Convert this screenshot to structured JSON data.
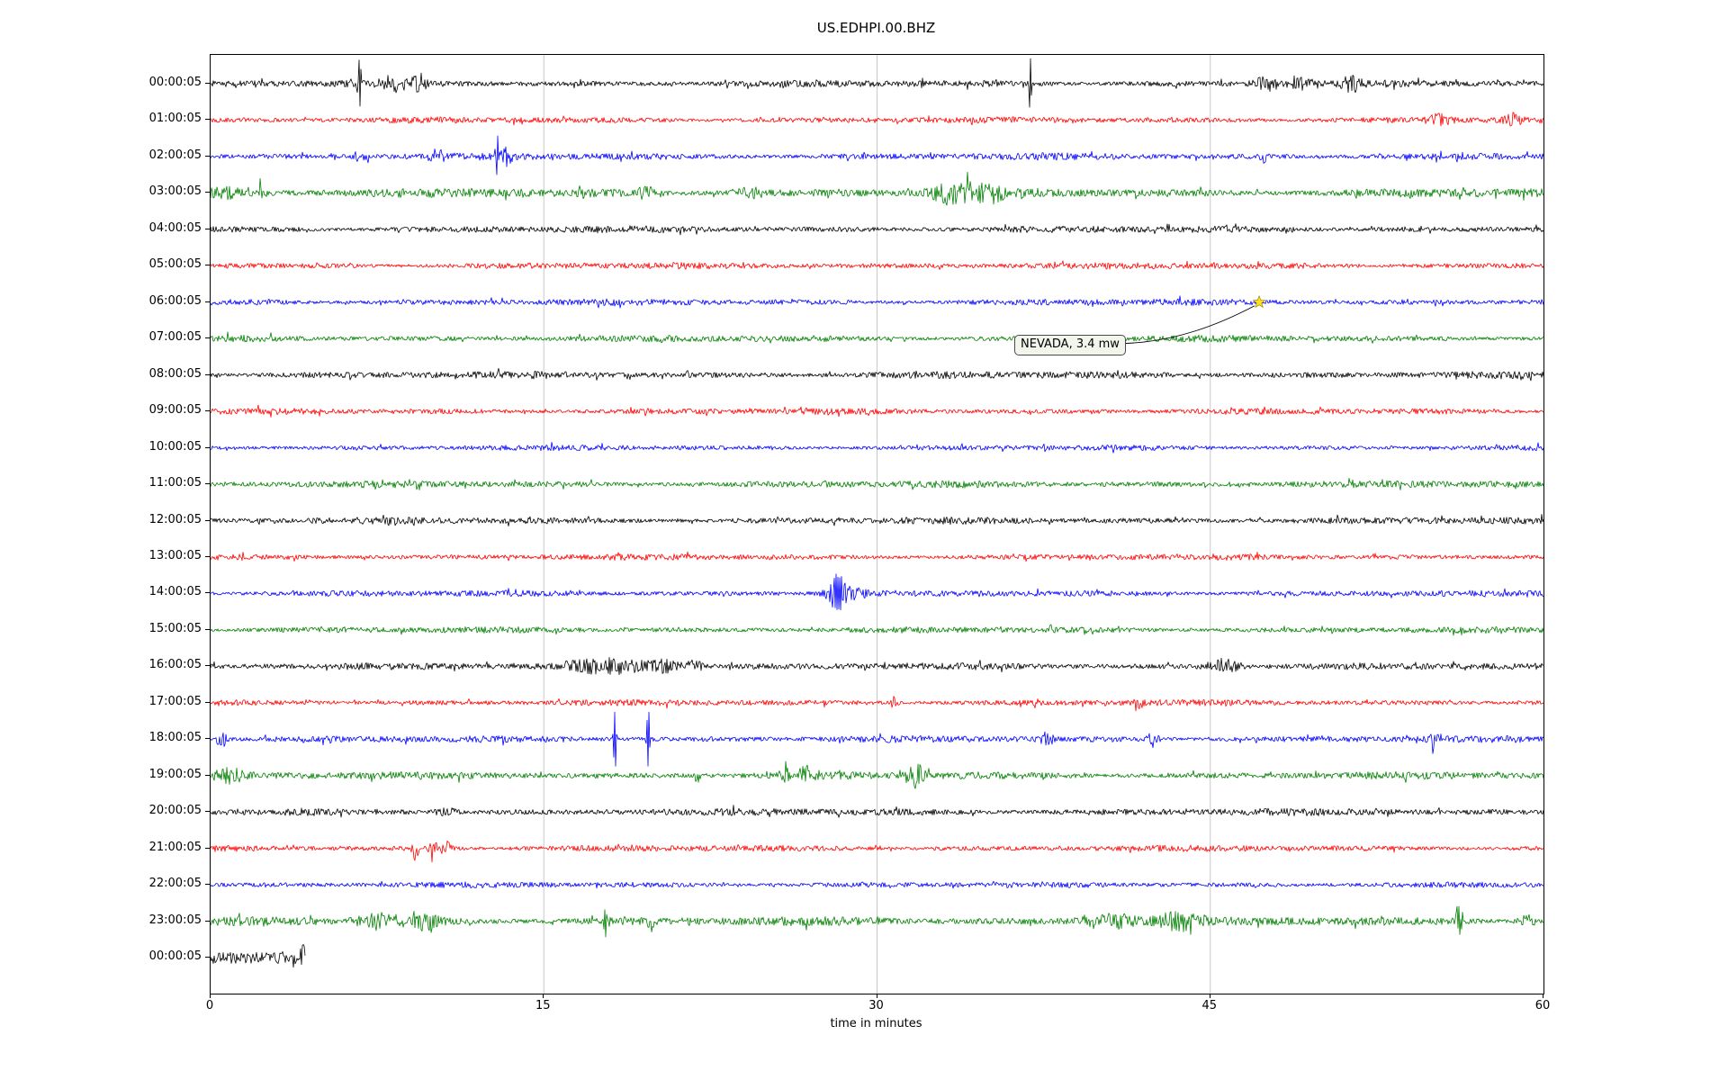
{
  "title": "US.EDHPI.00.BHZ",
  "axis": {
    "xlabel": "time in minutes",
    "xticks": [
      0,
      15,
      30,
      45,
      60
    ],
    "gridlines_x": [
      15,
      30,
      45
    ],
    "x_min": 0,
    "x_max": 60
  },
  "annotation": {
    "label": "NEVADA, 3.4 mw",
    "event_minute": 47.2,
    "event_row": 6,
    "star_color": "#ffe120",
    "star_edge_color": "#8f7a00"
  },
  "chart_data": {
    "type": "line",
    "kind": "seismic-helicorder-dayplot",
    "title": "US.EDHPI.00.BHZ",
    "xlabel": "time in minutes",
    "x_range_minutes": [
      0,
      60
    ],
    "minutes_per_row": 60,
    "grid": "vertical-only",
    "trace_color_cycle": [
      "#000000",
      "#ff0000",
      "#0000ff",
      "#008000"
    ],
    "row_note": "events are [minute, relative_amplitude, width_minutes] bursts/spikes read from the plot",
    "rows": [
      {
        "label": "00:00:05",
        "color": "#000000",
        "base_amp": 1.0,
        "events": [
          [
            6.7,
            9,
            0.08
          ],
          [
            8.2,
            2.2,
            0.5
          ],
          [
            9.3,
            1.8,
            0.5
          ],
          [
            36.9,
            11,
            0.06
          ],
          [
            47.6,
            2.0,
            0.7
          ],
          [
            49.2,
            1.6,
            0.4
          ],
          [
            51.3,
            3.5,
            0.3
          ]
        ]
      },
      {
        "label": "01:00:05",
        "color": "#ff0000",
        "base_amp": 0.9,
        "events": [
          [
            55.3,
            1.8,
            0.5
          ],
          [
            58.6,
            2.2,
            0.35
          ]
        ]
      },
      {
        "label": "02:00:05",
        "color": "#0000ff",
        "base_amp": 1.0,
        "events": [
          [
            6.8,
            1.5,
            0.3
          ],
          [
            10.2,
            1.8,
            0.35
          ],
          [
            12.9,
            7,
            0.1
          ],
          [
            13.3,
            3,
            0.25
          ],
          [
            47.4,
            2.6,
            0.15
          ]
        ]
      },
      {
        "label": "03:00:05",
        "color": "#008000",
        "base_amp": 1.3,
        "events": [
          [
            0.6,
            1.2,
            0.8
          ],
          [
            2.2,
            4.5,
            0.1
          ],
          [
            19.6,
            1.2,
            0.6
          ],
          [
            24.2,
            1.2,
            0.7
          ],
          [
            33.6,
            2.8,
            1.1
          ],
          [
            35.2,
            1.6,
            0.5
          ]
        ]
      },
      {
        "label": "04:00:05",
        "color": "#000000",
        "base_amp": 1.0,
        "events": []
      },
      {
        "label": "05:00:05",
        "color": "#ff0000",
        "base_amp": 0.95,
        "events": []
      },
      {
        "label": "06:00:05",
        "color": "#0000ff",
        "base_amp": 0.95,
        "events": []
      },
      {
        "label": "07:00:05",
        "color": "#008000",
        "base_amp": 0.95,
        "events": []
      },
      {
        "label": "08:00:05",
        "color": "#000000",
        "base_amp": 1.05,
        "events": []
      },
      {
        "label": "09:00:05",
        "color": "#ff0000",
        "base_amp": 0.9,
        "events": []
      },
      {
        "label": "10:00:05",
        "color": "#0000ff",
        "base_amp": 0.8,
        "events": []
      },
      {
        "label": "11:00:05",
        "color": "#008000",
        "base_amp": 1.0,
        "events": []
      },
      {
        "label": "12:00:05",
        "color": "#000000",
        "base_amp": 1.0,
        "events": []
      },
      {
        "label": "13:00:05",
        "color": "#ff0000",
        "base_amp": 0.9,
        "events": []
      },
      {
        "label": "14:00:05",
        "color": "#0000ff",
        "base_amp": 0.9,
        "events": [
          [
            28.2,
            5.5,
            0.35
          ],
          [
            28.6,
            2.5,
            0.8
          ]
        ]
      },
      {
        "label": "15:00:05",
        "color": "#008000",
        "base_amp": 0.9,
        "events": []
      },
      {
        "label": "16:00:05",
        "color": "#000000",
        "base_amp": 1.0,
        "events": [
          [
            16.6,
            2.2,
            0.7
          ],
          [
            18.2,
            2.6,
            1.1
          ],
          [
            20.3,
            2.2,
            0.9
          ],
          [
            21.8,
            1.8,
            0.4
          ],
          [
            45.6,
            2.6,
            0.7
          ]
        ]
      },
      {
        "label": "17:00:05",
        "color": "#ff0000",
        "base_amp": 0.9,
        "events": [
          [
            30.8,
            2.2,
            0.18
          ],
          [
            41.8,
            2.2,
            0.18
          ]
        ]
      },
      {
        "label": "18:00:05",
        "color": "#0000ff",
        "base_amp": 1.0,
        "events": [
          [
            0.5,
            3.5,
            0.2
          ],
          [
            18.2,
            13,
            0.06
          ],
          [
            19.7,
            15,
            0.06
          ],
          [
            37.6,
            2.2,
            0.3
          ],
          [
            42.4,
            2.6,
            0.22
          ],
          [
            55.1,
            2.2,
            0.35
          ]
        ]
      },
      {
        "label": "19:00:05",
        "color": "#008000",
        "base_amp": 1.1,
        "events": [
          [
            0.9,
            2,
            0.7
          ],
          [
            21.9,
            3.5,
            0.1
          ],
          [
            25.9,
            4.5,
            0.12
          ],
          [
            26.9,
            2.5,
            0.5
          ],
          [
            31.8,
            3.5,
            0.35
          ]
        ]
      },
      {
        "label": "20:00:05",
        "color": "#000000",
        "base_amp": 1.05,
        "events": [
          [
            10.6,
            1.3,
            0.4
          ]
        ]
      },
      {
        "label": "21:00:05",
        "color": "#ff0000",
        "base_amp": 0.9,
        "events": [
          [
            9.2,
            6,
            0.13
          ],
          [
            10.0,
            5,
            0.18
          ],
          [
            10.6,
            2.5,
            0.25
          ]
        ]
      },
      {
        "label": "22:00:05",
        "color": "#0000ff",
        "base_amp": 0.85,
        "events": []
      },
      {
        "label": "23:00:05",
        "color": "#008000",
        "base_amp": 1.25,
        "events": [
          [
            7.6,
            1.8,
            0.9
          ],
          [
            9.6,
            2,
            0.7
          ],
          [
            17.8,
            4,
            0.12
          ],
          [
            19.8,
            2.6,
            0.12
          ],
          [
            40.6,
            1.8,
            1.4
          ],
          [
            43.6,
            2.2,
            0.9
          ],
          [
            56.2,
            5.5,
            0.15
          ],
          [
            59.3,
            2.2,
            0.25
          ]
        ]
      },
      {
        "label": "00:00:05",
        "color": "#000000",
        "base_amp": 1.9,
        "end_minute": 4.25,
        "events": [
          [
            4.15,
            2.2,
            0.1
          ]
        ]
      }
    ]
  }
}
